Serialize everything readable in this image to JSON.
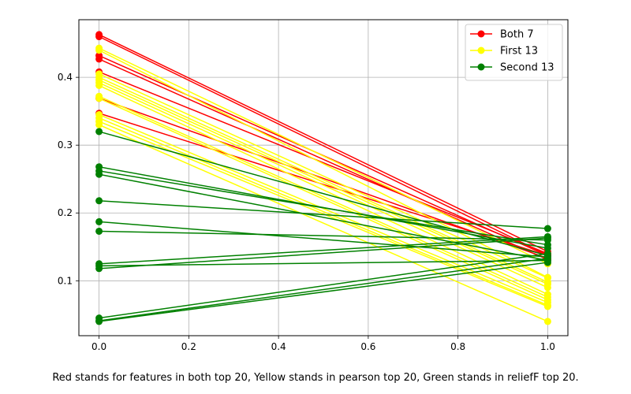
{
  "chart_data": {
    "type": "line",
    "caption": "Red stands for features in both top 20, Yellow stands in pearson top 20, Green stands in reliefF top 20.",
    "xlim": [
      -0.045,
      1.045
    ],
    "ylim": [
      0.019,
      0.485
    ],
    "x_ticks": [
      0,
      0.2,
      0.4,
      0.6,
      0.8,
      1.0
    ],
    "x_tick_labels": [
      "0.0",
      "0.2",
      "0.4",
      "0.6",
      "0.8",
      "1.0"
    ],
    "y_ticks": [
      0.1,
      0.2,
      0.3,
      0.4
    ],
    "y_tick_labels": [
      "0.1",
      "0.2",
      "0.3",
      "0.4"
    ],
    "grid": true,
    "legend_position": "top-right",
    "x": [
      0,
      1
    ],
    "series": [
      {
        "name": "Both 7",
        "color": "#ff0000",
        "lines": [
          [
            0.463,
            0.143
          ],
          [
            0.46,
            0.138
          ],
          [
            0.432,
            0.137
          ],
          [
            0.427,
            0.131
          ],
          [
            0.408,
            0.14
          ],
          [
            0.369,
            0.133
          ],
          [
            0.347,
            0.137
          ]
        ]
      },
      {
        "name": "First 13",
        "color": "#ffff00",
        "lines": [
          [
            0.443,
            0.125
          ],
          [
            0.44,
            0.105
          ],
          [
            0.405,
            0.104
          ],
          [
            0.4,
            0.098
          ],
          [
            0.396,
            0.095
          ],
          [
            0.392,
            0.09
          ],
          [
            0.388,
            0.08
          ],
          [
            0.372,
            0.076
          ],
          [
            0.369,
            0.072
          ],
          [
            0.345,
            0.068
          ],
          [
            0.34,
            0.064
          ],
          [
            0.335,
            0.062
          ],
          [
            0.33,
            0.04
          ]
        ]
      },
      {
        "name": "Second 13",
        "color": "#008000",
        "lines": [
          [
            0.32,
            0.137
          ],
          [
            0.268,
            0.148
          ],
          [
            0.262,
            0.153
          ],
          [
            0.257,
            0.13
          ],
          [
            0.218,
            0.177
          ],
          [
            0.187,
            0.135
          ],
          [
            0.173,
            0.16
          ],
          [
            0.125,
            0.165
          ],
          [
            0.122,
            0.13
          ],
          [
            0.118,
            0.163
          ],
          [
            0.045,
            0.14
          ],
          [
            0.041,
            0.133
          ],
          [
            0.04,
            0.127
          ]
        ]
      }
    ]
  }
}
